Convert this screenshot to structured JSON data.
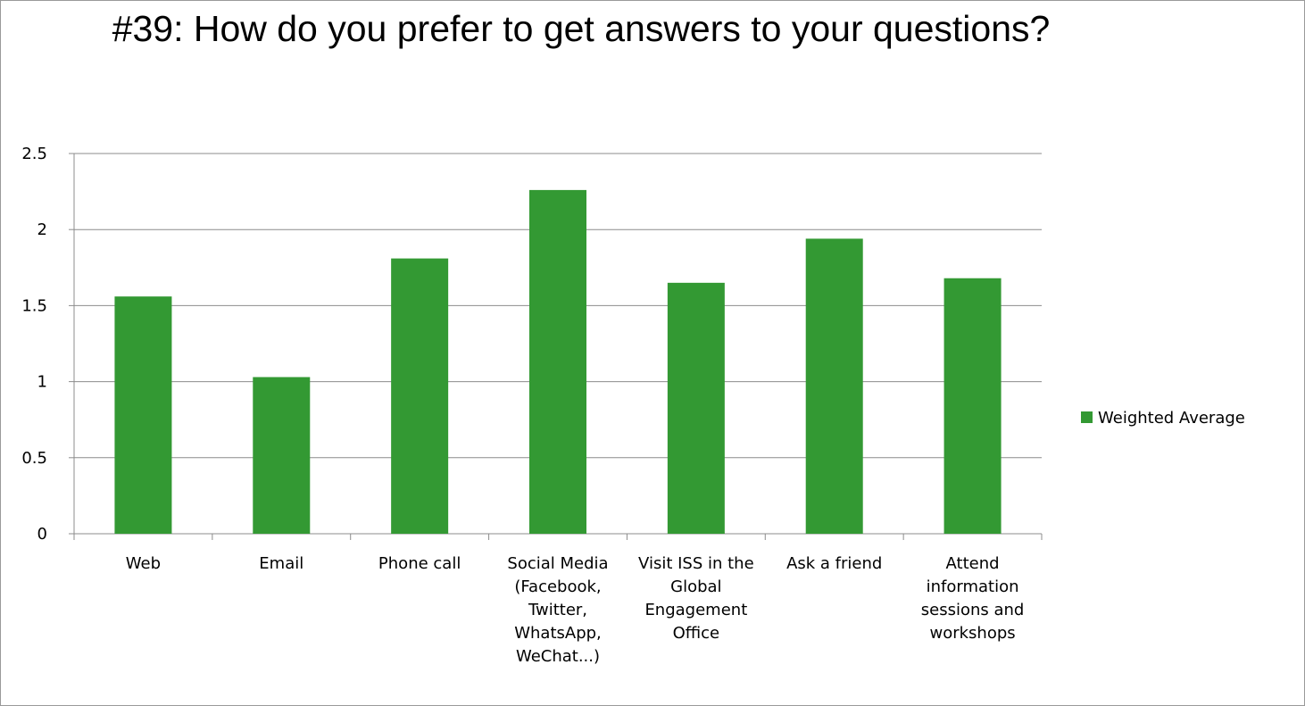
{
  "chart_data": {
    "type": "bar",
    "title": "#39: How do you prefer to get answers to your questions?",
    "xlabel": "",
    "ylabel": "",
    "ylim": [
      0,
      2.5
    ],
    "yticks": [
      "0",
      "0.5",
      "1",
      "1.5",
      "2",
      "2.5"
    ],
    "grid": true,
    "legend_position": "right",
    "categories": [
      "Web",
      "Email",
      "Phone call",
      "Social Media (Facebook, Twitter, WhatsApp, WeChat...)",
      "Visit ISS in the Global Engagement Office",
      "Ask a friend",
      "Attend information sessions and workshops"
    ],
    "series": [
      {
        "name": "Weighted Average",
        "color": "#339933",
        "values": [
          1.56,
          1.03,
          1.81,
          2.26,
          1.65,
          1.94,
          1.68
        ]
      }
    ]
  }
}
